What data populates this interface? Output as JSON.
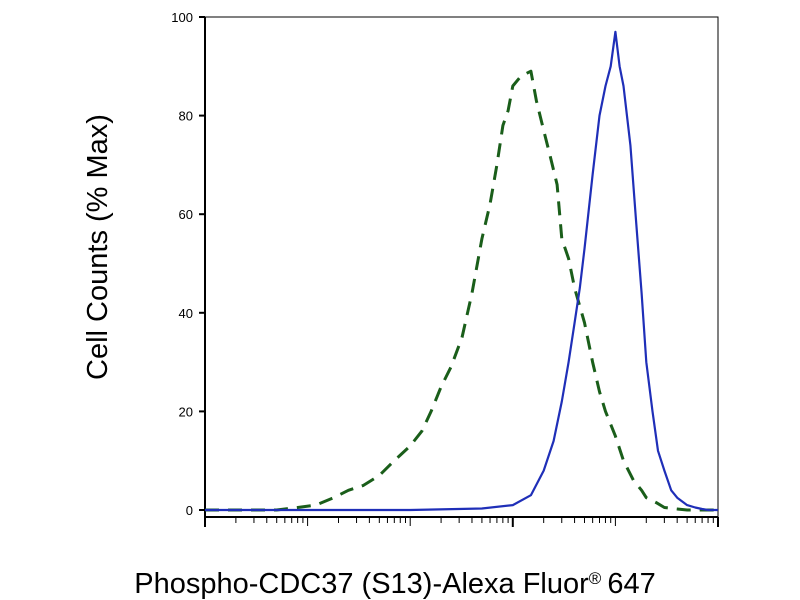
{
  "chart_data": {
    "type": "line",
    "xlabel": "Phospho-CDC37 (S13)-Alexa Fluor",
    "xlabel_superscript": "®",
    "xlabel_suffix": "647",
    "ylabel": "Cell Counts (% Max)",
    "x_scale": "log",
    "xlim": [
      1,
      100000
    ],
    "ylim": [
      0,
      100
    ],
    "yticks": [
      "0",
      "20",
      "40",
      "60",
      "80",
      "100"
    ],
    "x_decades": [
      1,
      10,
      100,
      1000,
      10000,
      100000
    ],
    "x_major_tick_decades": [
      1,
      1000,
      100000
    ],
    "grid": false,
    "legend": "none",
    "series": [
      {
        "style": "dashed",
        "color": "#1a5e1a",
        "x": [
          1,
          2,
          3.2,
          5,
          8,
          12,
          18,
          25,
          35,
          50,
          70,
          100,
          130,
          160,
          200,
          250,
          320,
          400,
          500,
          600,
          700,
          800,
          900,
          1000,
          1200,
          1500,
          1700,
          2000,
          2300,
          2700,
          3000,
          3500,
          4000,
          5000,
          6000,
          7000,
          8000,
          10000,
          12000,
          15000,
          18000,
          20000,
          25000,
          30000,
          40000,
          50000,
          60000,
          70000,
          80000,
          100000
        ],
        "y": [
          0,
          0,
          0,
          0,
          0.5,
          1,
          2.5,
          4,
          5,
          7,
          10,
          13,
          16,
          20,
          25,
          29,
          35,
          44,
          55,
          62,
          70,
          78,
          81,
          86,
          88,
          89,
          83,
          77,
          72,
          66,
          55,
          51,
          45,
          38,
          30,
          24,
          20,
          15,
          10,
          6,
          4,
          2.5,
          1.5,
          0.5,
          0.2,
          0,
          0,
          0,
          0,
          0
        ]
      },
      {
        "style": "solid",
        "color": "#1f2fb8",
        "x": [
          1,
          100,
          500,
          1000,
          1500,
          2000,
          2500,
          3000,
          3500,
          4000,
          4500,
          5000,
          6000,
          7000,
          8000,
          9000,
          10000,
          11000,
          12000,
          14000,
          16000,
          18000,
          20000,
          23000,
          26000,
          30000,
          35000,
          40000,
          50000,
          60000,
          70000,
          80000,
          100000
        ],
        "y": [
          0,
          0,
          0.3,
          1,
          3,
          8,
          14,
          22,
          30,
          38,
          45,
          53,
          68,
          80,
          86,
          90,
          97,
          90,
          86,
          74,
          58,
          44,
          30,
          20,
          12,
          8,
          4,
          2.5,
          1,
          0.5,
          0.2,
          0,
          0
        ]
      }
    ]
  }
}
